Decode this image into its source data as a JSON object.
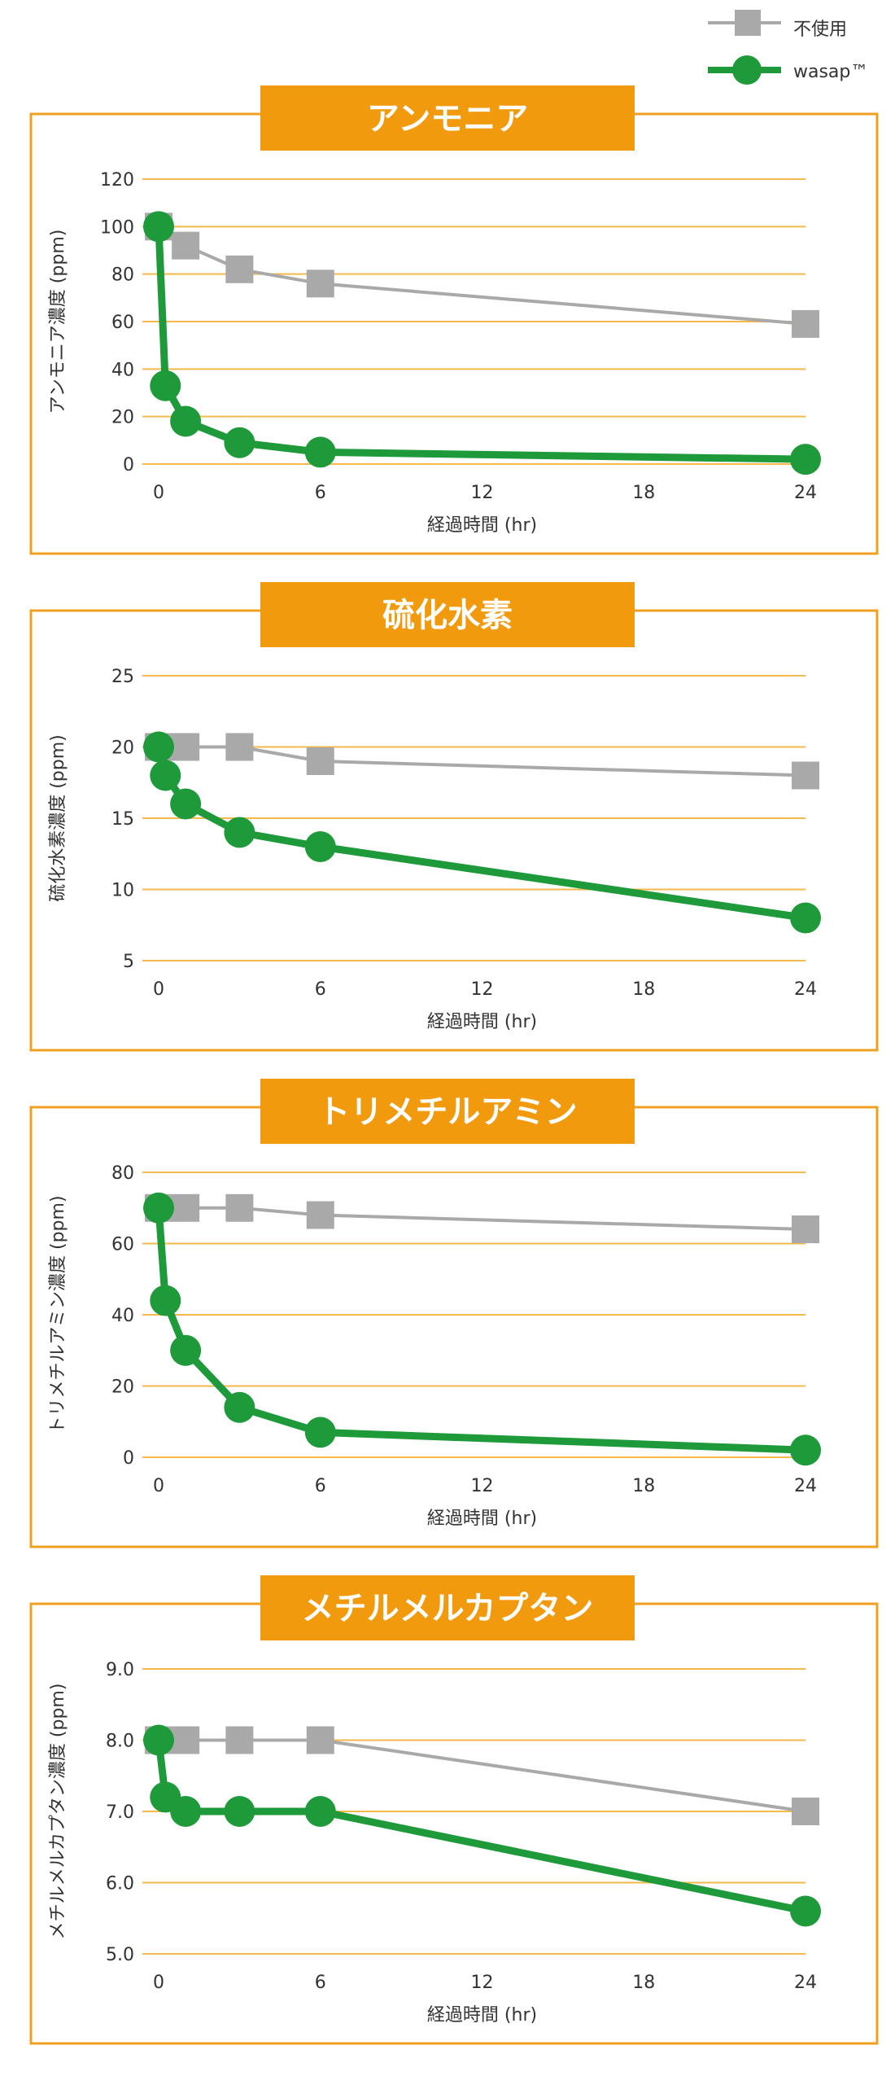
{
  "colors": {
    "panel_border": "#F0A020",
    "title_bg": "#F29A0E",
    "title_text": "#FFFFFF",
    "grid": "#F3B94A",
    "unused_series": "#A9A9A9",
    "wasap_series": "#1E9A3A"
  },
  "legend": {
    "items": [
      {
        "label": "不使用",
        "color": "#A9A9A9",
        "marker": "square"
      },
      {
        "label": "wasap™",
        "color": "#1E9A3A",
        "marker": "circle"
      }
    ]
  },
  "chart_data": [
    {
      "type": "line",
      "title": "アンモニア",
      "xlabel": "経過時間 (hr)",
      "ylabel": "アンモニア濃度 (ppm)",
      "xlim": [
        0,
        24
      ],
      "ylim": [
        0,
        120
      ],
      "x_ticks": [
        0,
        6,
        12,
        18,
        24
      ],
      "y_ticks": [
        0,
        20,
        40,
        60,
        80,
        100,
        120
      ],
      "y_tick_labels": [
        "0",
        "20",
        "40",
        "60",
        "80",
        "100",
        "120"
      ],
      "grid": true,
      "series": [
        {
          "name": "不使用",
          "color": "#A9A9A9",
          "marker": "square",
          "x": [
            0,
            1,
            3,
            6,
            24
          ],
          "y": [
            100,
            92,
            82,
            76,
            59
          ]
        },
        {
          "name": "wasap™",
          "color": "#1E9A3A",
          "marker": "circle",
          "x": [
            0,
            0.25,
            1,
            3,
            6,
            24
          ],
          "y": [
            100,
            33,
            18,
            9,
            5,
            2
          ]
        }
      ]
    },
    {
      "type": "line",
      "title": "硫化水素",
      "xlabel": "経過時間 (hr)",
      "ylabel": "硫化水素濃度 (ppm)",
      "xlim": [
        0,
        24
      ],
      "ylim": [
        5,
        25
      ],
      "x_ticks": [
        0,
        6,
        12,
        18,
        24
      ],
      "y_ticks": [
        5,
        10,
        15,
        20,
        25
      ],
      "y_tick_labels": [
        "5",
        "10",
        "15",
        "20",
        "25"
      ],
      "grid": true,
      "series": [
        {
          "name": "不使用",
          "color": "#A9A9A9",
          "marker": "square",
          "x": [
            0,
            1,
            3,
            6,
            24
          ],
          "y": [
            20,
            20,
            20,
            19,
            18
          ]
        },
        {
          "name": "wasap™",
          "color": "#1E9A3A",
          "marker": "circle",
          "x": [
            0,
            0.25,
            1,
            3,
            6,
            24
          ],
          "y": [
            20,
            18,
            16,
            14,
            13,
            8
          ]
        }
      ]
    },
    {
      "type": "line",
      "title": "トリメチルアミン",
      "xlabel": "経過時間 (hr)",
      "ylabel": "トリメチルアミン濃度 (ppm)",
      "xlim": [
        0,
        24
      ],
      "ylim": [
        0,
        80
      ],
      "x_ticks": [
        0,
        6,
        12,
        18,
        24
      ],
      "y_ticks": [
        0,
        20,
        40,
        60,
        80
      ],
      "y_tick_labels": [
        "0",
        "20",
        "40",
        "60",
        "80"
      ],
      "grid": true,
      "series": [
        {
          "name": "不使用",
          "color": "#A9A9A9",
          "marker": "square",
          "x": [
            0,
            1,
            3,
            6,
            24
          ],
          "y": [
            70,
            70,
            70,
            68,
            64
          ]
        },
        {
          "name": "wasap™",
          "color": "#1E9A3A",
          "marker": "circle",
          "x": [
            0,
            0.25,
            1,
            3,
            6,
            24
          ],
          "y": [
            70,
            44,
            30,
            14,
            7,
            2
          ]
        }
      ]
    },
    {
      "type": "line",
      "title": "メチルメルカプタン",
      "xlabel": "経過時間 (hr)",
      "ylabel": "メチルメルカプタン濃度 (ppm)",
      "xlim": [
        0,
        24
      ],
      "ylim": [
        5,
        9
      ],
      "x_ticks": [
        0,
        6,
        12,
        18,
        24
      ],
      "y_ticks": [
        5,
        6,
        7,
        8,
        9
      ],
      "y_tick_labels": [
        "5.0",
        "6.0",
        "7.0",
        "8.0",
        "9.0"
      ],
      "grid": true,
      "series": [
        {
          "name": "不使用",
          "color": "#A9A9A9",
          "marker": "square",
          "x": [
            0,
            1,
            3,
            6,
            24
          ],
          "y": [
            8.0,
            8.0,
            8.0,
            8.0,
            7.0
          ]
        },
        {
          "name": "wasap™",
          "color": "#1E9A3A",
          "marker": "circle",
          "x": [
            0,
            0.25,
            1,
            3,
            6,
            24
          ],
          "y": [
            8.0,
            7.2,
            7.0,
            7.0,
            7.0,
            5.6
          ]
        }
      ]
    }
  ]
}
